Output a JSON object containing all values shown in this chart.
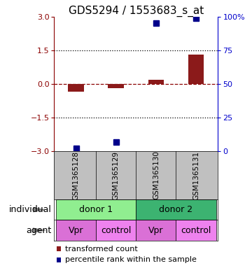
{
  "title": "GDS5294 / 1553683_s_at",
  "samples": [
    "GSM1365128",
    "GSM1365129",
    "GSM1365130",
    "GSM1365131"
  ],
  "red_values": [
    -0.35,
    -0.18,
    0.18,
    1.3
  ],
  "blue_values": [
    2,
    7,
    95,
    99
  ],
  "ylim_left": [
    -3,
    3
  ],
  "ylim_right": [
    0,
    100
  ],
  "yticks_left": [
    -3,
    -1.5,
    0,
    1.5,
    3
  ],
  "yticks_right": [
    0,
    25,
    50,
    75,
    100
  ],
  "hlines": [
    1.5,
    -1.5
  ],
  "individual_groups": [
    {
      "label": "donor 1",
      "cols": [
        0,
        1
      ],
      "color": "#90EE90"
    },
    {
      "label": "donor 2",
      "cols": [
        2,
        3
      ],
      "color": "#3CB371"
    }
  ],
  "agent_groups": [
    {
      "label": "Vpr",
      "color": "#DA70D6"
    },
    {
      "label": "control",
      "color": "#EE82EE"
    },
    {
      "label": "Vpr",
      "color": "#DA70D6"
    },
    {
      "label": "control",
      "color": "#EE82EE"
    }
  ],
  "red_color": "#8B1A1A",
  "blue_color": "#00008B",
  "bar_width": 0.4,
  "blue_marker_size": 6,
  "title_fontsize": 11,
  "tick_fontsize": 8,
  "label_fontsize": 9,
  "legend_fontsize": 8,
  "row_label_fontsize": 9,
  "sample_fontsize": 7.5,
  "sample_row_color": "#C0C0C0",
  "plot_bg_color": "#FFFFFF",
  "right_axis_color": "#0000CC",
  "left_axis_color": "#8B0000"
}
